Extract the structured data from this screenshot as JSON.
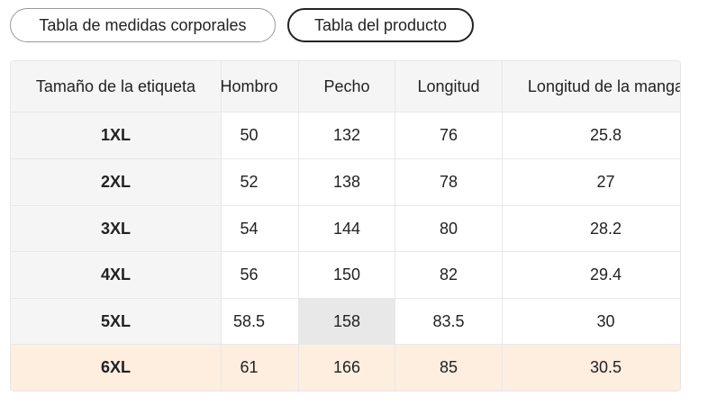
{
  "tabs": [
    "Tabla de medidas corporales",
    "Tabla del producto"
  ],
  "table": {
    "header": [
      "Tamaño de la etiqueta",
      "Hombro",
      "Pecho",
      "Longitud",
      "Longitud de la manga"
    ],
    "rows": [
      [
        "1XL",
        "50",
        "132",
        "76",
        "25.8"
      ],
      [
        "2XL",
        "52",
        "138",
        "78",
        "27"
      ],
      [
        "3XL",
        "54",
        "144",
        "80",
        "28.2"
      ],
      [
        "4XL",
        "56",
        "150",
        "82",
        "29.4"
      ],
      [
        "5XL",
        "58.5",
        "158",
        "83.5",
        "30"
      ],
      [
        "6XL",
        "61",
        "166",
        "85",
        "30.5"
      ]
    ]
  }
}
